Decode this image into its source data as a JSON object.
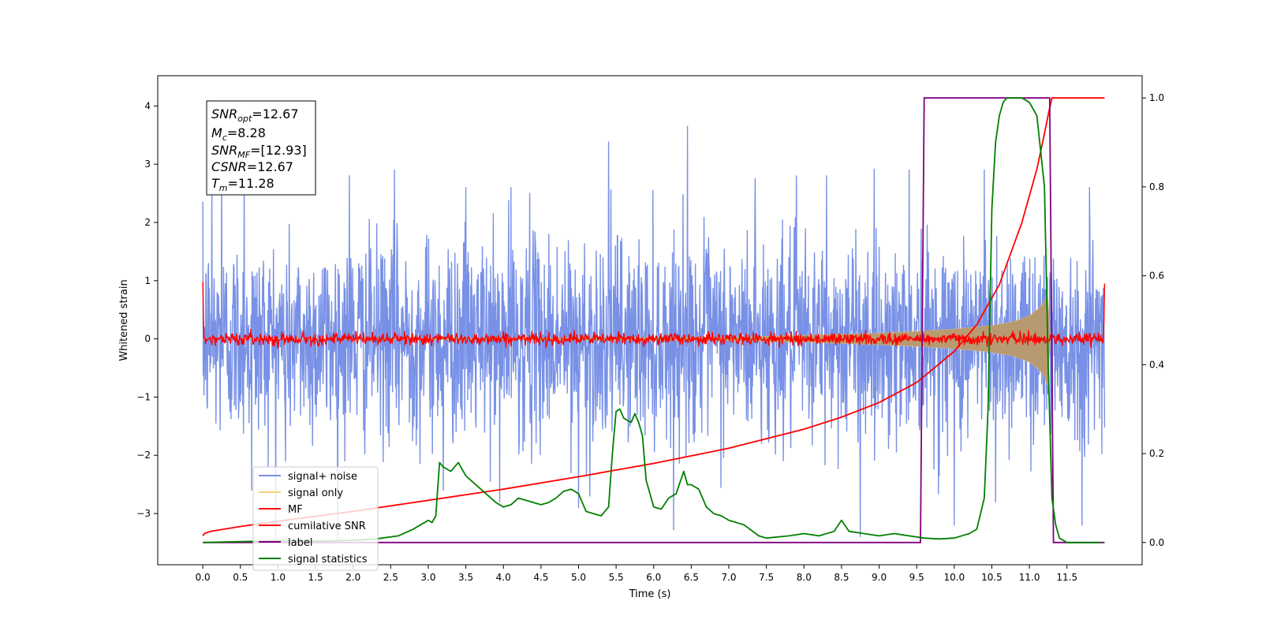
{
  "chart_data": {
    "type": "line",
    "xlabel": "Time (s)",
    "ylabel": "Whitened strain",
    "xlim": [
      -0.6,
      12.5
    ],
    "ylim": [
      -3.88,
      4.52
    ],
    "y2lim": [
      -0.05,
      1.05
    ],
    "x_ticks": [
      0.0,
      0.5,
      1.0,
      1.5,
      2.0,
      2.5,
      3.0,
      3.5,
      4.0,
      4.5,
      5.0,
      5.5,
      6.0,
      6.5,
      7.0,
      7.5,
      8.0,
      8.5,
      9.0,
      9.5,
      10.0,
      10.5,
      11.0,
      11.5
    ],
    "x_tick_labels": [
      "0.0",
      "0.5",
      "1.0",
      "1.5",
      "2.0",
      "2.5",
      "3.0",
      "3.5",
      "4.0",
      "4.5",
      "5.0",
      "5.5",
      "6.0",
      "6.5",
      "7.0",
      "7.5",
      "8.0",
      "8.5",
      "9.0",
      "9.5",
      "10.0",
      "10.5",
      "11.0",
      "11.5"
    ],
    "y_ticks": [
      -3,
      -2,
      -1,
      0,
      1,
      2,
      3,
      4
    ],
    "y_tick_labels": [
      "−3",
      "−2",
      "−1",
      "0",
      "1",
      "2",
      "3",
      "4"
    ],
    "y2_ticks": [
      0.0,
      0.2,
      0.4,
      0.6,
      0.8,
      1.0
    ],
    "y2_tick_labels": [
      "0.0",
      "0.2",
      "0.4",
      "0.6",
      "0.8",
      "1.0"
    ],
    "grid": false,
    "legend_position": "lower-left",
    "legend": [
      {
        "label": "signal+ noise",
        "color": "#7891e6"
      },
      {
        "label": "signal only",
        "color": "#f9d17c"
      },
      {
        "label": "MF",
        "color": "#ff0000"
      },
      {
        "label": "cumilative SNR",
        "color": "#ff0000"
      },
      {
        "label": "label",
        "color": "#800080"
      },
      {
        "label": "signal statistics",
        "color": "#008000"
      }
    ],
    "annotation": [
      {
        "base": "SNR",
        "sub": "opt",
        "value": "=12.67"
      },
      {
        "base": "M",
        "sub": "c",
        "value": "=8.28"
      },
      {
        "base": "SNR",
        "sub": "MF",
        "value": "=[12.93]"
      },
      {
        "base": "CSNR",
        "sub": "",
        "value": "=12.67"
      },
      {
        "base": "T",
        "sub": "m",
        "value": "=11.28"
      }
    ],
    "series": [
      {
        "name": "signal+ noise",
        "axis": "left",
        "x_range": [
          0.0,
          12.0
        ],
        "noise_sigma": 0.85,
        "peaks": [
          [
            0.12,
            2.7
          ],
          [
            0.25,
            3.1
          ],
          [
            0.55,
            3.1
          ],
          [
            0.65,
            -2.6
          ],
          [
            1.1,
            -2.1
          ],
          [
            1.95,
            2.8
          ],
          [
            2.55,
            2.9
          ],
          [
            3.2,
            -2.6
          ],
          [
            3.5,
            2.6
          ],
          [
            3.95,
            -2.8
          ],
          [
            4.1,
            2.6
          ],
          [
            4.35,
            2.5
          ],
          [
            4.9,
            -2.3
          ],
          [
            5.0,
            -2.9
          ],
          [
            5.15,
            -2.7
          ],
          [
            5.4,
            3.38
          ],
          [
            6.45,
            3.65
          ],
          [
            7.35,
            2.75
          ],
          [
            7.9,
            2.8
          ],
          [
            8.3,
            2.8
          ],
          [
            8.75,
            -3.4
          ],
          [
            9.4,
            2.9
          ],
          [
            10.0,
            -3.2
          ],
          [
            10.4,
            2.9
          ],
          [
            10.55,
            -2.8
          ],
          [
            11.7,
            -3.2
          ],
          [
            11.8,
            2.6
          ]
        ]
      },
      {
        "name": "signal only",
        "axis": "left",
        "x_range": [
          0.0,
          11.28
        ],
        "envelope": [
          [
            0.0,
            0.0
          ],
          [
            7.0,
            0.03
          ],
          [
            8.0,
            0.06
          ],
          [
            8.5,
            0.08
          ],
          [
            9.0,
            0.1
          ],
          [
            9.5,
            0.13
          ],
          [
            10.0,
            0.17
          ],
          [
            10.5,
            0.23
          ],
          [
            10.8,
            0.3
          ],
          [
            11.0,
            0.4
          ],
          [
            11.15,
            0.55
          ],
          [
            11.22,
            0.7
          ],
          [
            11.27,
            0.95
          ],
          [
            11.28,
            0.0
          ]
        ]
      },
      {
        "name": "MF",
        "axis": "left",
        "x_range": [
          0.0,
          12.0
        ],
        "noise_sigma": 0.05,
        "edges": [
          [
            0.0,
            0.98
          ],
          [
            12.0,
            0.95
          ]
        ]
      },
      {
        "name": "cumilative SNR",
        "axis": "right",
        "x": [
          0.0,
          0.02,
          0.05,
          0.1,
          0.5,
          1.0,
          2.0,
          3.0,
          4.0,
          5.0,
          6.0,
          7.0,
          8.0,
          8.5,
          9.0,
          9.5,
          10.0,
          10.3,
          10.6,
          10.9,
          11.1,
          11.2,
          11.26,
          11.3,
          12.0
        ],
        "y": [
          0.015,
          0.02,
          0.022,
          0.025,
          0.036,
          0.048,
          0.07,
          0.095,
          0.12,
          0.148,
          0.178,
          0.212,
          0.255,
          0.282,
          0.315,
          0.36,
          0.43,
          0.49,
          0.58,
          0.72,
          0.84,
          0.92,
          0.97,
          1.0,
          1.0
        ]
      },
      {
        "name": "label",
        "axis": "right",
        "x": [
          0.0,
          9.55,
          9.6,
          11.27,
          11.32,
          12.0
        ],
        "y": [
          0.0,
          0.0,
          1.0,
          1.0,
          0.0,
          0.0
        ]
      },
      {
        "name": "signal statistics",
        "axis": "right",
        "x": [
          0.0,
          0.5,
          1.0,
          1.5,
          2.0,
          2.3,
          2.6,
          2.8,
          2.9,
          3.0,
          3.05,
          3.1,
          3.15,
          3.2,
          3.3,
          3.4,
          3.5,
          3.7,
          3.9,
          4.0,
          4.1,
          4.2,
          4.4,
          4.5,
          4.6,
          4.7,
          4.8,
          4.9,
          5.0,
          5.1,
          5.2,
          5.3,
          5.4,
          5.45,
          5.5,
          5.55,
          5.6,
          5.7,
          5.75,
          5.8,
          5.85,
          5.9,
          6.0,
          6.1,
          6.2,
          6.3,
          6.4,
          6.45,
          6.5,
          6.6,
          6.7,
          6.8,
          6.9,
          7.0,
          7.2,
          7.4,
          7.5,
          7.8,
          8.0,
          8.2,
          8.4,
          8.5,
          8.6,
          8.8,
          9.0,
          9.2,
          9.4,
          9.6,
          9.8,
          10.0,
          10.2,
          10.3,
          10.4,
          10.45,
          10.5,
          10.55,
          10.6,
          10.65,
          10.7,
          10.8,
          10.9,
          11.0,
          11.1,
          11.2,
          11.25,
          11.3,
          11.35,
          11.4,
          11.5,
          11.6,
          11.8,
          11.95
        ],
        "y": [
          0.0,
          0.002,
          0.004,
          0.003,
          0.005,
          0.008,
          0.015,
          0.03,
          0.04,
          0.05,
          0.045,
          0.06,
          0.18,
          0.17,
          0.16,
          0.18,
          0.15,
          0.12,
          0.09,
          0.08,
          0.085,
          0.1,
          0.09,
          0.085,
          0.09,
          0.1,
          0.115,
          0.12,
          0.11,
          0.07,
          0.065,
          0.06,
          0.08,
          0.2,
          0.295,
          0.3,
          0.28,
          0.27,
          0.29,
          0.27,
          0.24,
          0.14,
          0.08,
          0.075,
          0.1,
          0.11,
          0.16,
          0.13,
          0.13,
          0.12,
          0.08,
          0.065,
          0.06,
          0.05,
          0.04,
          0.015,
          0.01,
          0.015,
          0.02,
          0.015,
          0.025,
          0.05,
          0.025,
          0.02,
          0.015,
          0.02,
          0.015,
          0.01,
          0.008,
          0.01,
          0.02,
          0.03,
          0.1,
          0.3,
          0.75,
          0.9,
          0.96,
          0.99,
          1.0,
          1.0,
          1.0,
          0.99,
          0.96,
          0.8,
          0.4,
          0.1,
          0.04,
          0.01,
          0.0,
          0.0,
          0.0,
          0.0
        ]
      }
    ]
  }
}
